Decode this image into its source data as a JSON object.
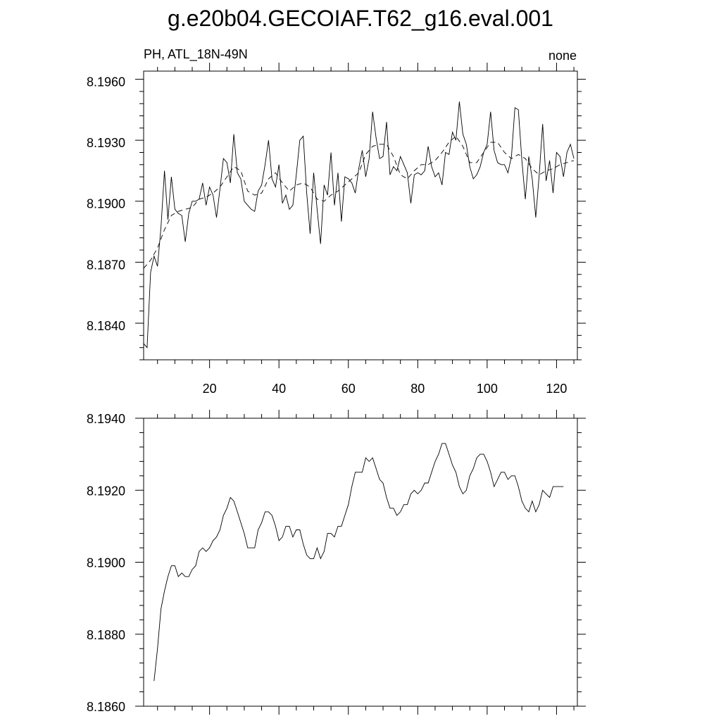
{
  "title": "g.e20b04.GECOIAF.T62_g16.eval.001",
  "subtitle_left": "PH, ATL_18N-49N",
  "subtitle_right": "none",
  "chart_data": [
    {
      "type": "line",
      "xlim": [
        1,
        126
      ],
      "ylim": [
        8.1823,
        8.1965
      ],
      "y_ticks": [
        "8.1960",
        "8.1930",
        "8.1900",
        "8.1870",
        "8.1840"
      ],
      "y_tick_values": [
        8.196,
        8.193,
        8.19,
        8.187,
        8.184
      ],
      "x_ticks": [
        "20",
        "40",
        "60",
        "80",
        "100",
        "120"
      ],
      "x_tick_values": [
        20,
        40,
        60,
        80,
        100,
        120
      ],
      "grid": false,
      "series": [
        {
          "style": "solid",
          "x": [
            1,
            2,
            3,
            4,
            5,
            6,
            7,
            8,
            9,
            10,
            11,
            12,
            13,
            14,
            15,
            16,
            17,
            18,
            19,
            20,
            21,
            22,
            23,
            24,
            25,
            26,
            27,
            28,
            29,
            30,
            31,
            32,
            33,
            34,
            35,
            36,
            37,
            38,
            39,
            40,
            41,
            42,
            43,
            44,
            45,
            46,
            47,
            48,
            49,
            50,
            51,
            52,
            53,
            54,
            55,
            56,
            57,
            58,
            59,
            60,
            61,
            62,
            63,
            64,
            65,
            66,
            67,
            68,
            69,
            70,
            71,
            72,
            73,
            74,
            75,
            76,
            77,
            78,
            79,
            80,
            81,
            82,
            83,
            84,
            85,
            86,
            87,
            88,
            89,
            90,
            91,
            92,
            93,
            94,
            95,
            96,
            97,
            98,
            99,
            100,
            101,
            102,
            103,
            104,
            105,
            106,
            107,
            108,
            109,
            110,
            111,
            112,
            113,
            114,
            115,
            116,
            117,
            118,
            119,
            120,
            121,
            122,
            123,
            124,
            125
          ],
          "y": [
            8.1831,
            8.1829,
            8.1866,
            8.1874,
            8.1869,
            8.1888,
            8.1916,
            8.1892,
            8.1913,
            8.1897,
            8.1895,
            8.1894,
            8.1881,
            8.1895,
            8.1901,
            8.1901,
            8.1902,
            8.191,
            8.1899,
            8.1908,
            8.1904,
            8.1893,
            8.1907,
            8.1922,
            8.192,
            8.191,
            8.1934,
            8.1915,
            8.1912,
            8.1901,
            8.1899,
            8.1897,
            8.1896,
            8.1906,
            8.1909,
            8.1919,
            8.1931,
            8.1912,
            8.1908,
            8.1919,
            8.19,
            8.1904,
            8.1897,
            8.1899,
            8.1914,
            8.1931,
            8.1933,
            8.1905,
            8.1885,
            8.1915,
            8.1897,
            8.188,
            8.1909,
            8.1904,
            8.1925,
            8.1899,
            8.1915,
            8.1891,
            8.1913,
            8.1912,
            8.191,
            8.1905,
            8.1917,
            8.1926,
            8.1913,
            8.1922,
            8.1945,
            8.1932,
            8.1922,
            8.1923,
            8.194,
            8.1914,
            8.1918,
            8.1916,
            8.1923,
            8.1919,
            8.1915,
            8.19,
            8.1914,
            8.1915,
            8.1914,
            8.1916,
            8.1928,
            8.1918,
            8.1913,
            8.1915,
            8.1909,
            8.1925,
            8.1924,
            8.1935,
            8.1931,
            8.195,
            8.1934,
            8.1929,
            8.1918,
            8.1912,
            8.1914,
            8.1918,
            8.1925,
            8.1929,
            8.1945,
            8.1926,
            8.192,
            8.1919,
            8.1919,
            8.1915,
            8.1923,
            8.1947,
            8.1946,
            8.1921,
            8.1902,
            8.1923,
            8.1912,
            8.1893,
            8.1914,
            8.1939,
            8.1911,
            8.1921,
            8.1905,
            8.1925,
            8.1923,
            8.1913,
            8.1925,
            8.1929,
            8.1922
          ]
        },
        {
          "style": "dashed",
          "x": [
            1,
            3,
            5,
            7,
            9,
            11,
            13,
            15,
            17,
            19,
            21,
            23,
            25,
            27,
            29,
            31,
            33,
            35,
            37,
            39,
            41,
            43,
            45,
            47,
            49,
            51,
            53,
            55,
            57,
            59,
            61,
            63,
            65,
            67,
            69,
            71,
            73,
            75,
            77,
            79,
            81,
            83,
            85,
            87,
            89,
            91,
            93,
            95,
            97,
            99,
            101,
            103,
            105,
            107,
            109,
            111,
            113,
            115,
            117,
            119,
            121,
            123,
            125
          ],
          "y": [
            8.1868,
            8.1872,
            8.1878,
            8.1887,
            8.1894,
            8.1896,
            8.1897,
            8.1898,
            8.1902,
            8.1903,
            8.1905,
            8.1908,
            8.1913,
            8.1918,
            8.1916,
            8.1906,
            8.1904,
            8.1905,
            8.1912,
            8.1915,
            8.191,
            8.1906,
            8.1909,
            8.191,
            8.1908,
            8.1902,
            8.1901,
            8.1904,
            8.1906,
            8.1909,
            8.1912,
            8.1915,
            8.1924,
            8.1928,
            8.1929,
            8.1929,
            8.1923,
            8.1914,
            8.1912,
            8.1916,
            8.1919,
            8.1919,
            8.1921,
            8.1925,
            8.193,
            8.1933,
            8.1928,
            8.192,
            8.192,
            8.1925,
            8.193,
            8.193,
            8.1925,
            8.1922,
            8.1924,
            8.1922,
            8.1917,
            8.1914,
            8.1916,
            8.1917,
            8.1919,
            8.192,
            8.1921
          ]
        }
      ]
    },
    {
      "type": "line",
      "xlim": [
        1,
        126
      ],
      "ylim": [
        8.186,
        8.194
      ],
      "y_ticks": [
        "8.1940",
        "8.1920",
        "8.1900",
        "8.1880",
        "8.1860"
      ],
      "y_tick_values": [
        8.194,
        8.192,
        8.19,
        8.188,
        8.186
      ],
      "grid": false,
      "series": [
        {
          "style": "solid",
          "x": [
            4,
            5,
            6,
            7,
            8,
            9,
            10,
            11,
            12,
            13,
            14,
            15,
            16,
            17,
            18,
            19,
            20,
            21,
            22,
            23,
            24,
            25,
            26,
            27,
            28,
            29,
            30,
            31,
            32,
            33,
            34,
            35,
            36,
            37,
            38,
            39,
            40,
            41,
            42,
            43,
            44,
            45,
            46,
            47,
            48,
            49,
            50,
            51,
            52,
            53,
            54,
            55,
            56,
            57,
            58,
            59,
            60,
            61,
            62,
            63,
            64,
            65,
            66,
            67,
            68,
            69,
            70,
            71,
            72,
            73,
            74,
            75,
            76,
            77,
            78,
            79,
            80,
            81,
            82,
            83,
            84,
            85,
            86,
            87,
            88,
            89,
            90,
            91,
            92,
            93,
            94,
            95,
            96,
            97,
            98,
            99,
            100,
            101,
            102,
            103,
            104,
            105,
            106,
            107,
            108,
            109,
            110,
            111,
            112,
            113,
            114,
            115,
            116,
            117,
            118,
            119,
            120,
            121,
            122
          ],
          "y": [
            8.1867,
            8.1876,
            8.1887,
            8.1892,
            8.1896,
            8.1899,
            8.1899,
            8.1896,
            8.1897,
            8.1896,
            8.1896,
            8.1898,
            8.1899,
            8.1903,
            8.1904,
            8.1903,
            8.1904,
            8.1906,
            8.1907,
            8.1909,
            8.1913,
            8.1915,
            8.1918,
            8.1917,
            8.1914,
            8.1911,
            8.1908,
            8.1904,
            8.1904,
            8.1904,
            8.1909,
            8.1911,
            8.1914,
            8.1914,
            8.1913,
            8.191,
            8.1906,
            8.1907,
            8.191,
            8.191,
            8.1907,
            8.1909,
            8.1909,
            8.1905,
            8.1902,
            8.1901,
            8.1901,
            8.1904,
            8.1901,
            8.1903,
            8.1908,
            8.1908,
            8.1907,
            8.191,
            8.191,
            8.1913,
            8.1916,
            8.1921,
            8.1925,
            8.1925,
            8.1925,
            8.1929,
            8.1928,
            8.1929,
            8.1926,
            8.1923,
            8.1922,
            8.1918,
            8.1915,
            8.1915,
            8.1913,
            8.1914,
            8.1916,
            8.1916,
            8.1919,
            8.192,
            8.1919,
            8.192,
            8.1922,
            8.1922,
            8.1925,
            8.1928,
            8.193,
            8.1933,
            8.1933,
            8.193,
            8.1927,
            8.1925,
            8.1921,
            8.1919,
            8.192,
            8.1924,
            8.1926,
            8.1929,
            8.193,
            8.193,
            8.1928,
            8.1925,
            8.1921,
            8.1923,
            8.1925,
            8.1925,
            8.1923,
            8.1924,
            8.1924,
            8.1921,
            8.1917,
            8.1915,
            8.1914,
            8.1917,
            8.1914,
            8.1916,
            8.192,
            8.1919,
            8.1918,
            8.1921,
            8.1921,
            8.1921,
            8.1921
          ]
        }
      ]
    }
  ]
}
